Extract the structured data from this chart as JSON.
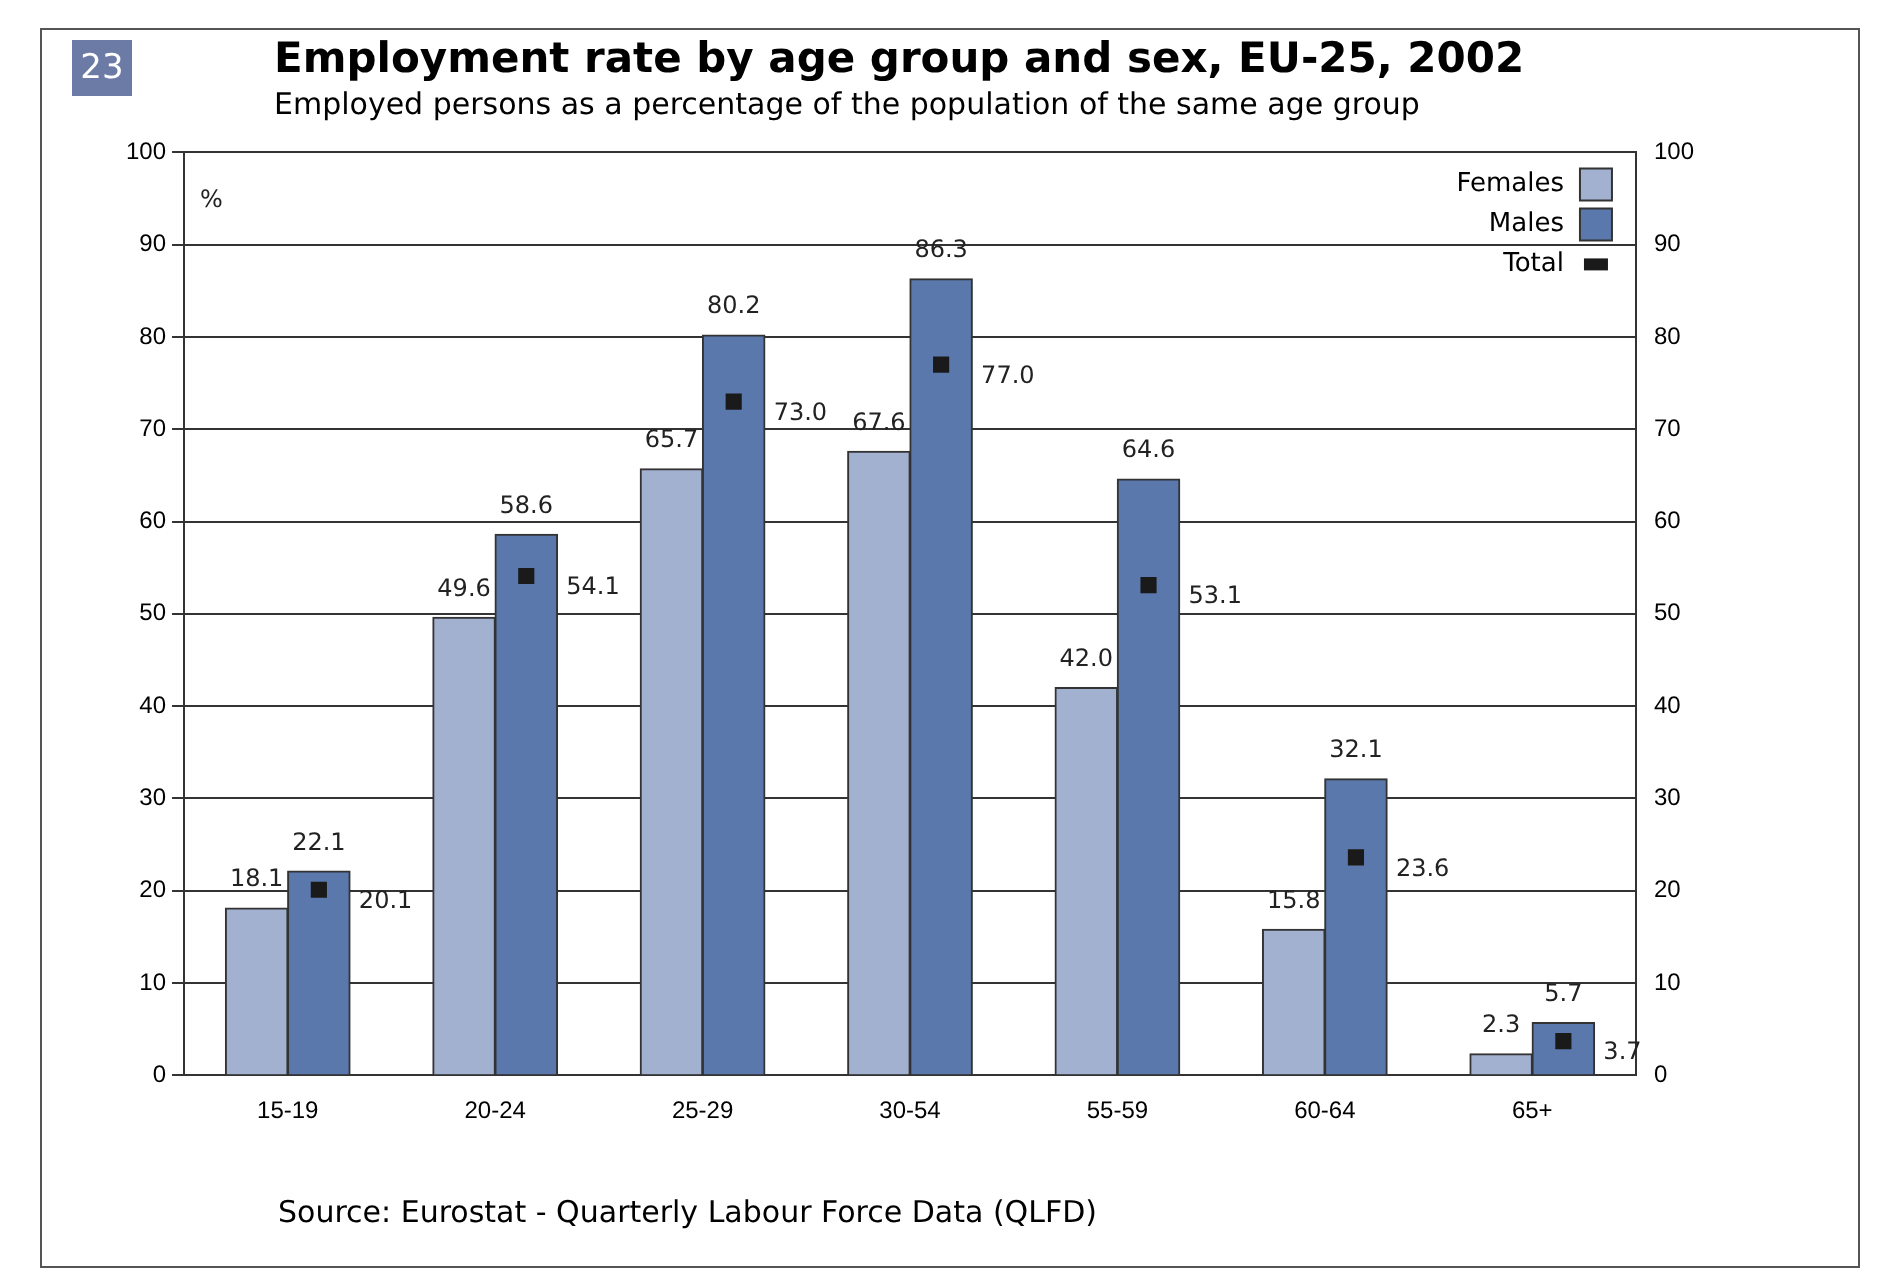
{
  "chart_data": {
    "type": "bar",
    "title": "Employment rate by age group and sex, EU-25, 2002",
    "subtitle": "Employed persons as a percentage of the population of the same age group",
    "ylabel": "%",
    "annotations": [
      "23",
      "Source: Eurostat - Quarterly Labour Force Data (QLFD)"
    ],
    "categories": [
      "15-19",
      "20-24",
      "25-29",
      "30-54",
      "55-59",
      "60-64",
      "65+"
    ],
    "series": [
      {
        "name": "Females",
        "color": "#a3b1d1",
        "values": [
          18.1,
          49.6,
          65.7,
          67.6,
          42.0,
          15.8,
          2.3
        ],
        "value_labels": [
          "18.1",
          "49.6",
          "65.7",
          "67.6",
          "42.0",
          "15.8",
          "2.3"
        ]
      },
      {
        "name": "Males",
        "color": "#5a78ab",
        "values": [
          22.1,
          58.6,
          80.2,
          86.3,
          64.6,
          32.1,
          5.7
        ],
        "value_labels": [
          "22.1",
          "58.6",
          "80.2",
          "86.3",
          "64.6",
          "32.1",
          "5.7"
        ]
      },
      {
        "name": "Total",
        "type": "scatter",
        "marker": "square",
        "color": "#1a1a1a",
        "x": [
          "15-19",
          "20-24",
          "25-29",
          "30-54",
          "55-59",
          "60-64",
          "65+"
        ],
        "values": [
          20.1,
          54.1,
          73.0,
          77.0,
          53.1,
          23.6,
          3.7
        ],
        "value_labels": [
          "20.1",
          "54.1",
          "73.0",
          "77.0",
          "53.1",
          "23.6",
          "3.7"
        ]
      }
    ],
    "ylim": [
      0,
      100
    ],
    "yticks": [
      0,
      10,
      20,
      30,
      40,
      50,
      60,
      70,
      80,
      90,
      100
    ],
    "y2lim": [
      0,
      100
    ],
    "y2ticks": [
      0,
      10,
      20,
      30,
      40,
      50,
      60,
      70,
      80,
      90,
      100
    ],
    "grid": "y",
    "legend": "top right"
  }
}
